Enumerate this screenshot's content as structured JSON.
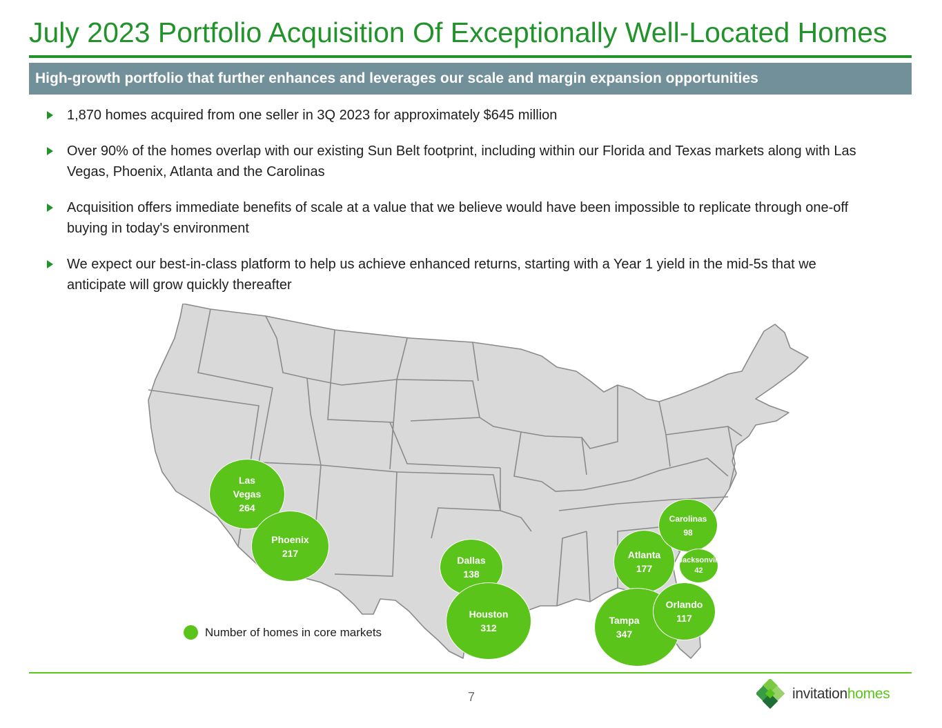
{
  "header": {
    "title": "July 2023 Portfolio Acquisition Of Exceptionally Well-Located Homes",
    "subtitle": "High-growth portfolio that further enhances and leverages our scale and margin expansion opportunities"
  },
  "bullets": [
    "1,870 homes acquired from one seller in 3Q 2023 for approximately $645 million",
    "Over 90% of the homes overlap with our existing Sun Belt footprint, including within our Florida and Texas markets along with Las Vegas, Phoenix, Atlanta and the Carolinas",
    "Acquisition offers immediate benefits of scale at a value that we believe would have been impossible to replicate through one-off buying in today's environment",
    "We expect our best-in-class platform to help us achieve enhanced returns, starting with a Year 1 yield in the mid-5s that we anticipate will grow quickly thereafter"
  ],
  "markets": [
    {
      "name": "Las Vegas",
      "name_lines": [
        "Las",
        "Vegas"
      ],
      "homes": "264"
    },
    {
      "name": "Phoenix",
      "name_lines": [
        "Phoenix"
      ],
      "homes": "217"
    },
    {
      "name": "Dallas",
      "name_lines": [
        "Dallas"
      ],
      "homes": "138"
    },
    {
      "name": "Houston",
      "name_lines": [
        "Houston"
      ],
      "homes": "312"
    },
    {
      "name": "Atlanta",
      "name_lines": [
        "Atlanta"
      ],
      "homes": "177"
    },
    {
      "name": "Carolinas",
      "name_lines": [
        "Carolinas"
      ],
      "homes": "98"
    },
    {
      "name": "Jacksonville",
      "name_lines": [
        "Jacksonvill"
      ],
      "homes": "42"
    },
    {
      "name": "Orlando",
      "name_lines": [
        "Orlando"
      ],
      "homes": "117"
    },
    {
      "name": "Tampa",
      "name_lines": [
        "Tampa"
      ],
      "homes": "347"
    }
  ],
  "legend": {
    "label": "Number of homes in core markets"
  },
  "colors": {
    "brand_green": "#22922b",
    "bubble_green": "#5bc41a",
    "subtitle_bar": "#71909a",
    "map_fill": "#d9d9d9"
  },
  "footer": {
    "page_number": "7",
    "logo_word_1": "invitation",
    "logo_word_2": "homes",
    "logo_icon": "diamond-cluster-icon"
  }
}
